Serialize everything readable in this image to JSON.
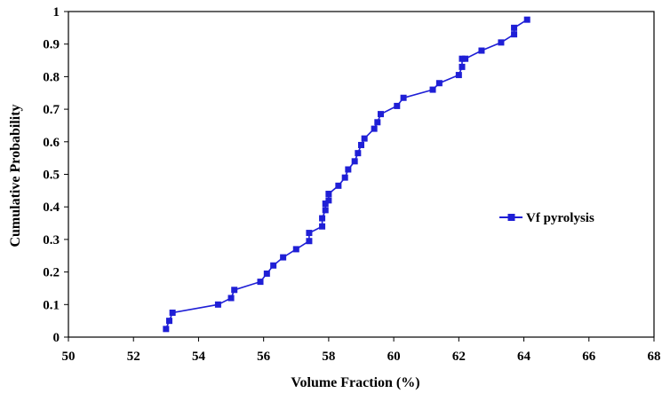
{
  "chart_data": {
    "type": "line",
    "xlabel": "Volume Fraction (%)",
    "ylabel": "Cumulative Probability",
    "xlim": [
      50,
      68
    ],
    "ylim": [
      0,
      1
    ],
    "xticks": [
      "50",
      "52",
      "54",
      "56",
      "58",
      "60",
      "62",
      "64",
      "66",
      "68"
    ],
    "yticks": [
      "0",
      "0.1",
      "0.2",
      "0.3",
      "0.4",
      "0.5",
      "0.6",
      "0.7",
      "0.8",
      "0.9",
      "1"
    ],
    "legend_position": "right",
    "series": [
      {
        "name": "Vf pyrolysis",
        "color": "#1f1fd6",
        "marker": "square",
        "x": [
          53.0,
          53.1,
          53.2,
          54.6,
          55.0,
          55.1,
          55.9,
          56.1,
          56.3,
          56.6,
          57.0,
          57.4,
          57.4,
          57.8,
          57.8,
          57.9,
          57.9,
          58.0,
          58.0,
          58.3,
          58.5,
          58.6,
          58.8,
          58.9,
          59.0,
          59.1,
          59.4,
          59.5,
          59.6,
          60.1,
          60.3,
          61.2,
          61.4,
          62.0,
          62.1,
          62.1,
          62.2,
          62.7,
          63.3,
          63.7,
          63.7,
          64.1
        ],
        "y": [
          0.025,
          0.05,
          0.075,
          0.1,
          0.12,
          0.145,
          0.17,
          0.195,
          0.22,
          0.245,
          0.27,
          0.295,
          0.32,
          0.34,
          0.365,
          0.39,
          0.41,
          0.42,
          0.44,
          0.465,
          0.49,
          0.515,
          0.54,
          0.565,
          0.59,
          0.61,
          0.64,
          0.66,
          0.685,
          0.71,
          0.735,
          0.76,
          0.78,
          0.805,
          0.83,
          0.855,
          0.855,
          0.88,
          0.905,
          0.93,
          0.95,
          0.975
        ]
      }
    ]
  }
}
